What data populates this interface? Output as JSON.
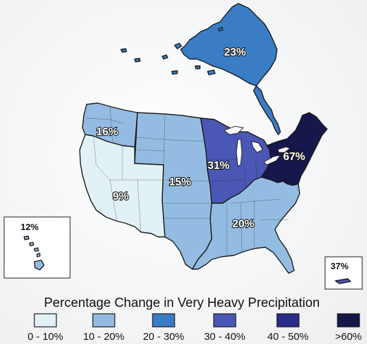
{
  "regions": {
    "alaska": {
      "label": "23%",
      "color": "#3a7dc4"
    },
    "northwest": {
      "label": "16%",
      "color": "#94bce2"
    },
    "southwest": {
      "label": "9%",
      "color": "#e2f1f6"
    },
    "great_plains": {
      "label": "15%",
      "color": "#94bce2"
    },
    "midwest": {
      "label": "31%",
      "color": "#4a57b5"
    },
    "northeast": {
      "label": "67%",
      "color": "#16174a"
    },
    "southeast": {
      "label": "20%",
      "color": "#94bce2"
    },
    "hawaii": {
      "label": "12%",
      "color": "#94bce2"
    },
    "puerto_rico": {
      "label": "37%",
      "color": "#4a57b5"
    }
  },
  "legend": {
    "title": "Percentage Change in Very Heavy Precipitation",
    "items": [
      {
        "label": "0 - 10%",
        "color": "#e2f1f6"
      },
      {
        "label": "10 - 20%",
        "color": "#94bce2"
      },
      {
        "label": "20 - 30%",
        "color": "#3a7dc4"
      },
      {
        "label": "30 - 40%",
        "color": "#4a57b5"
      },
      {
        "label": "40 - 50%",
        "color": "#2b2e86"
      },
      {
        "label": ">60%",
        "color": "#16174a"
      }
    ]
  }
}
